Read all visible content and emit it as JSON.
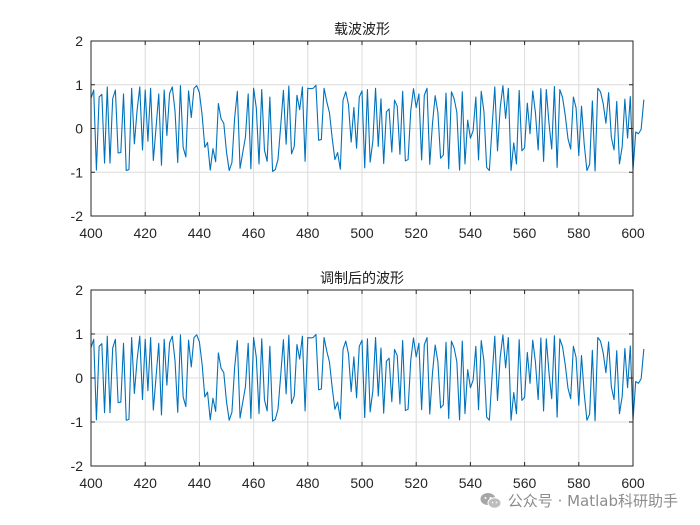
{
  "chart_data": [
    {
      "type": "line",
      "title": "载波波形",
      "xlabel": "",
      "ylabel": "",
      "xlim": [
        400,
        600
      ],
      "ylim": [
        -2,
        2
      ],
      "xticks": [
        400,
        420,
        440,
        460,
        480,
        500,
        520,
        540,
        560,
        580,
        600
      ],
      "yticks": [
        -2,
        -1,
        0,
        1,
        2
      ],
      "grid": true,
      "series_color": "#0072bd",
      "series": [
        {
          "x_start": 400,
          "x_step": 1,
          "values": [
            0.69,
            0.88,
            -0.95,
            0.72,
            0.78,
            -0.79,
            0.95,
            -0.79,
            0.68,
            0.88,
            -0.56,
            -0.55,
            0.79,
            -0.96,
            -0.94,
            0.92,
            -0.35,
            0.41,
            0.95,
            -0.49,
            0.88,
            -0.29,
            0.92,
            -0.73,
            0.02,
            0.79,
            -0.84,
            0.88,
            -0.16,
            0.8,
            0.95,
            0.4,
            -0.78,
            0.98,
            -0.43,
            -0.65,
            0.86,
            0.25,
            0.92,
            0.98,
            0.82,
            0.31,
            -0.43,
            -0.32,
            -0.95,
            -0.46,
            -0.76,
            0.57,
            0.22,
            0.12,
            -0.54,
            -0.96,
            -0.78,
            0.24,
            0.85,
            -0.91,
            -0.55,
            -0.19,
            0.79,
            -0.92,
            0.92,
            0.47,
            -0.81,
            0.89,
            -0.49,
            -0.75,
            0.72,
            -0.98,
            -0.94,
            -0.71,
            0.06,
            0.87,
            -0.36,
            0.97,
            -0.58,
            -0.41,
            0.76,
            0.43,
            0.95,
            -0.75,
            0.92,
            0.91,
            0.92,
            0.99,
            -0.27,
            -0.25,
            0.92,
            0.61,
            0.36,
            -0.22,
            -0.71,
            -0.55,
            -0.93,
            0.65,
            0.84,
            0.55,
            -0.31,
            0.48,
            -0.45,
            0.72,
            0.86,
            -0.9,
            0.89,
            -0.77,
            -0.29,
            0.92,
            -0.41,
            0.68,
            -0.8,
            0.38,
            0.45,
            -0.54,
            0.65,
            0.51,
            -0.59,
            0.85,
            -0.74,
            -0.71,
            0.41,
            0.91,
            0.48,
            0.79,
            -0.72,
            0.76,
            0.92,
            -0.82,
            0.11,
            0.75,
            0.37,
            -0.68,
            -0.61,
            0.81,
            -0.92,
            0.84,
            0.68,
            0.37,
            -0.95,
            0.84,
            -0.81,
            0.19,
            -0.22,
            -0.05,
            0.72,
            -0.72,
            0.85,
            0.38,
            -0.89,
            -0.96,
            0.04,
            0.95,
            -0.51,
            0.48,
            0.98,
            0.23,
            0.92,
            -0.96,
            -0.33,
            -0.81,
            0.87,
            -0.51,
            -0.44,
            0.58,
            -0.12,
            0.86,
            0.36,
            -0.49,
            0.91,
            -0.75,
            0.89,
            0.12,
            -0.47,
            0.96,
            -0.89,
            0.89,
            0.71,
            0.3,
            -0.23,
            -0.47,
            0.72,
            0.47,
            -0.62,
            0.51,
            -0.36,
            -0.96,
            -0.82,
            0.63,
            -0.97,
            0.92,
            0.84,
            0.57,
            0.12,
            0.82,
            -0.2,
            -0.49,
            0.62,
            -0.81,
            -0.42,
            0.67,
            -0.22,
            0.73,
            -0.96,
            -0.08,
            -0.12,
            -0.02,
            0.66
          ]
        }
      ]
    },
    {
      "type": "line",
      "title": "调制后的波形",
      "xlabel": "",
      "ylabel": "",
      "xlim": [
        400,
        600
      ],
      "ylim": [
        -2,
        2
      ],
      "xticks": [
        400,
        420,
        440,
        460,
        480,
        500,
        520,
        540,
        560,
        580,
        600
      ],
      "yticks": [
        -2,
        -1,
        0,
        1,
        2
      ],
      "grid": true,
      "series_color": "#0072bd",
      "series": [
        {
          "x_start": 400,
          "x_step": 1,
          "values": [
            0.69,
            0.88,
            -0.95,
            0.72,
            0.78,
            -0.79,
            0.95,
            -0.79,
            0.68,
            0.88,
            -0.56,
            -0.55,
            0.79,
            -0.96,
            -0.94,
            0.92,
            -0.35,
            0.41,
            0.95,
            -0.49,
            0.88,
            -0.29,
            0.92,
            -0.73,
            0.02,
            0.79,
            -0.84,
            0.88,
            -0.16,
            0.8,
            0.95,
            0.4,
            -0.78,
            0.98,
            -0.43,
            -0.65,
            0.86,
            0.25,
            0.92,
            0.98,
            0.82,
            0.31,
            -0.43,
            -0.32,
            -0.95,
            -0.46,
            -0.76,
            0.57,
            0.22,
            0.12,
            -0.54,
            -0.96,
            -0.78,
            0.24,
            0.85,
            -0.91,
            -0.55,
            -0.19,
            0.79,
            -0.92,
            0.92,
            0.47,
            -0.81,
            0.89,
            -0.49,
            -0.75,
            0.72,
            -0.98,
            -0.94,
            -0.71,
            0.06,
            0.87,
            -0.36,
            0.97,
            -0.58,
            -0.41,
            0.76,
            0.43,
            0.95,
            -0.75,
            0.92,
            0.91,
            0.92,
            0.99,
            -0.27,
            -0.25,
            0.92,
            0.61,
            0.36,
            -0.22,
            -0.71,
            -0.55,
            -0.93,
            0.65,
            0.84,
            0.55,
            -0.31,
            0.48,
            -0.45,
            0.72,
            0.86,
            -0.9,
            0.89,
            -0.77,
            -0.29,
            0.92,
            -0.41,
            0.68,
            -0.8,
            0.38,
            0.45,
            -0.54,
            0.65,
            0.51,
            -0.59,
            0.85,
            -0.74,
            -0.71,
            0.41,
            0.91,
            0.48,
            0.79,
            -0.72,
            0.76,
            0.92,
            -0.82,
            0.11,
            0.75,
            0.37,
            -0.68,
            -0.61,
            0.81,
            -0.92,
            0.84,
            0.68,
            0.37,
            -0.95,
            0.84,
            -0.81,
            0.19,
            -0.22,
            -0.05,
            0.72,
            -0.72,
            0.85,
            0.38,
            -0.89,
            -0.96,
            0.04,
            0.95,
            -0.51,
            0.48,
            0.98,
            0.23,
            0.92,
            -0.96,
            -0.33,
            -0.81,
            0.87,
            -0.51,
            -0.44,
            0.58,
            -0.12,
            0.86,
            0.36,
            -0.49,
            0.91,
            -0.75,
            0.89,
            0.12,
            -0.47,
            0.96,
            -0.89,
            0.89,
            0.71,
            0.3,
            -0.23,
            -0.47,
            0.72,
            0.47,
            -0.62,
            0.51,
            -0.36,
            -0.96,
            -0.82,
            0.63,
            -0.97,
            0.92,
            0.84,
            0.57,
            0.12,
            0.82,
            -0.2,
            -0.49,
            0.62,
            -0.81,
            -0.42,
            0.67,
            -0.22,
            0.73,
            -0.96,
            -0.08,
            -0.12,
            -0.02,
            0.66
          ]
        }
      ]
    }
  ],
  "watermark": {
    "text": "公众号 · Matlab科研助手",
    "icon": "wechat-icon",
    "color": "#8c8c8c"
  }
}
